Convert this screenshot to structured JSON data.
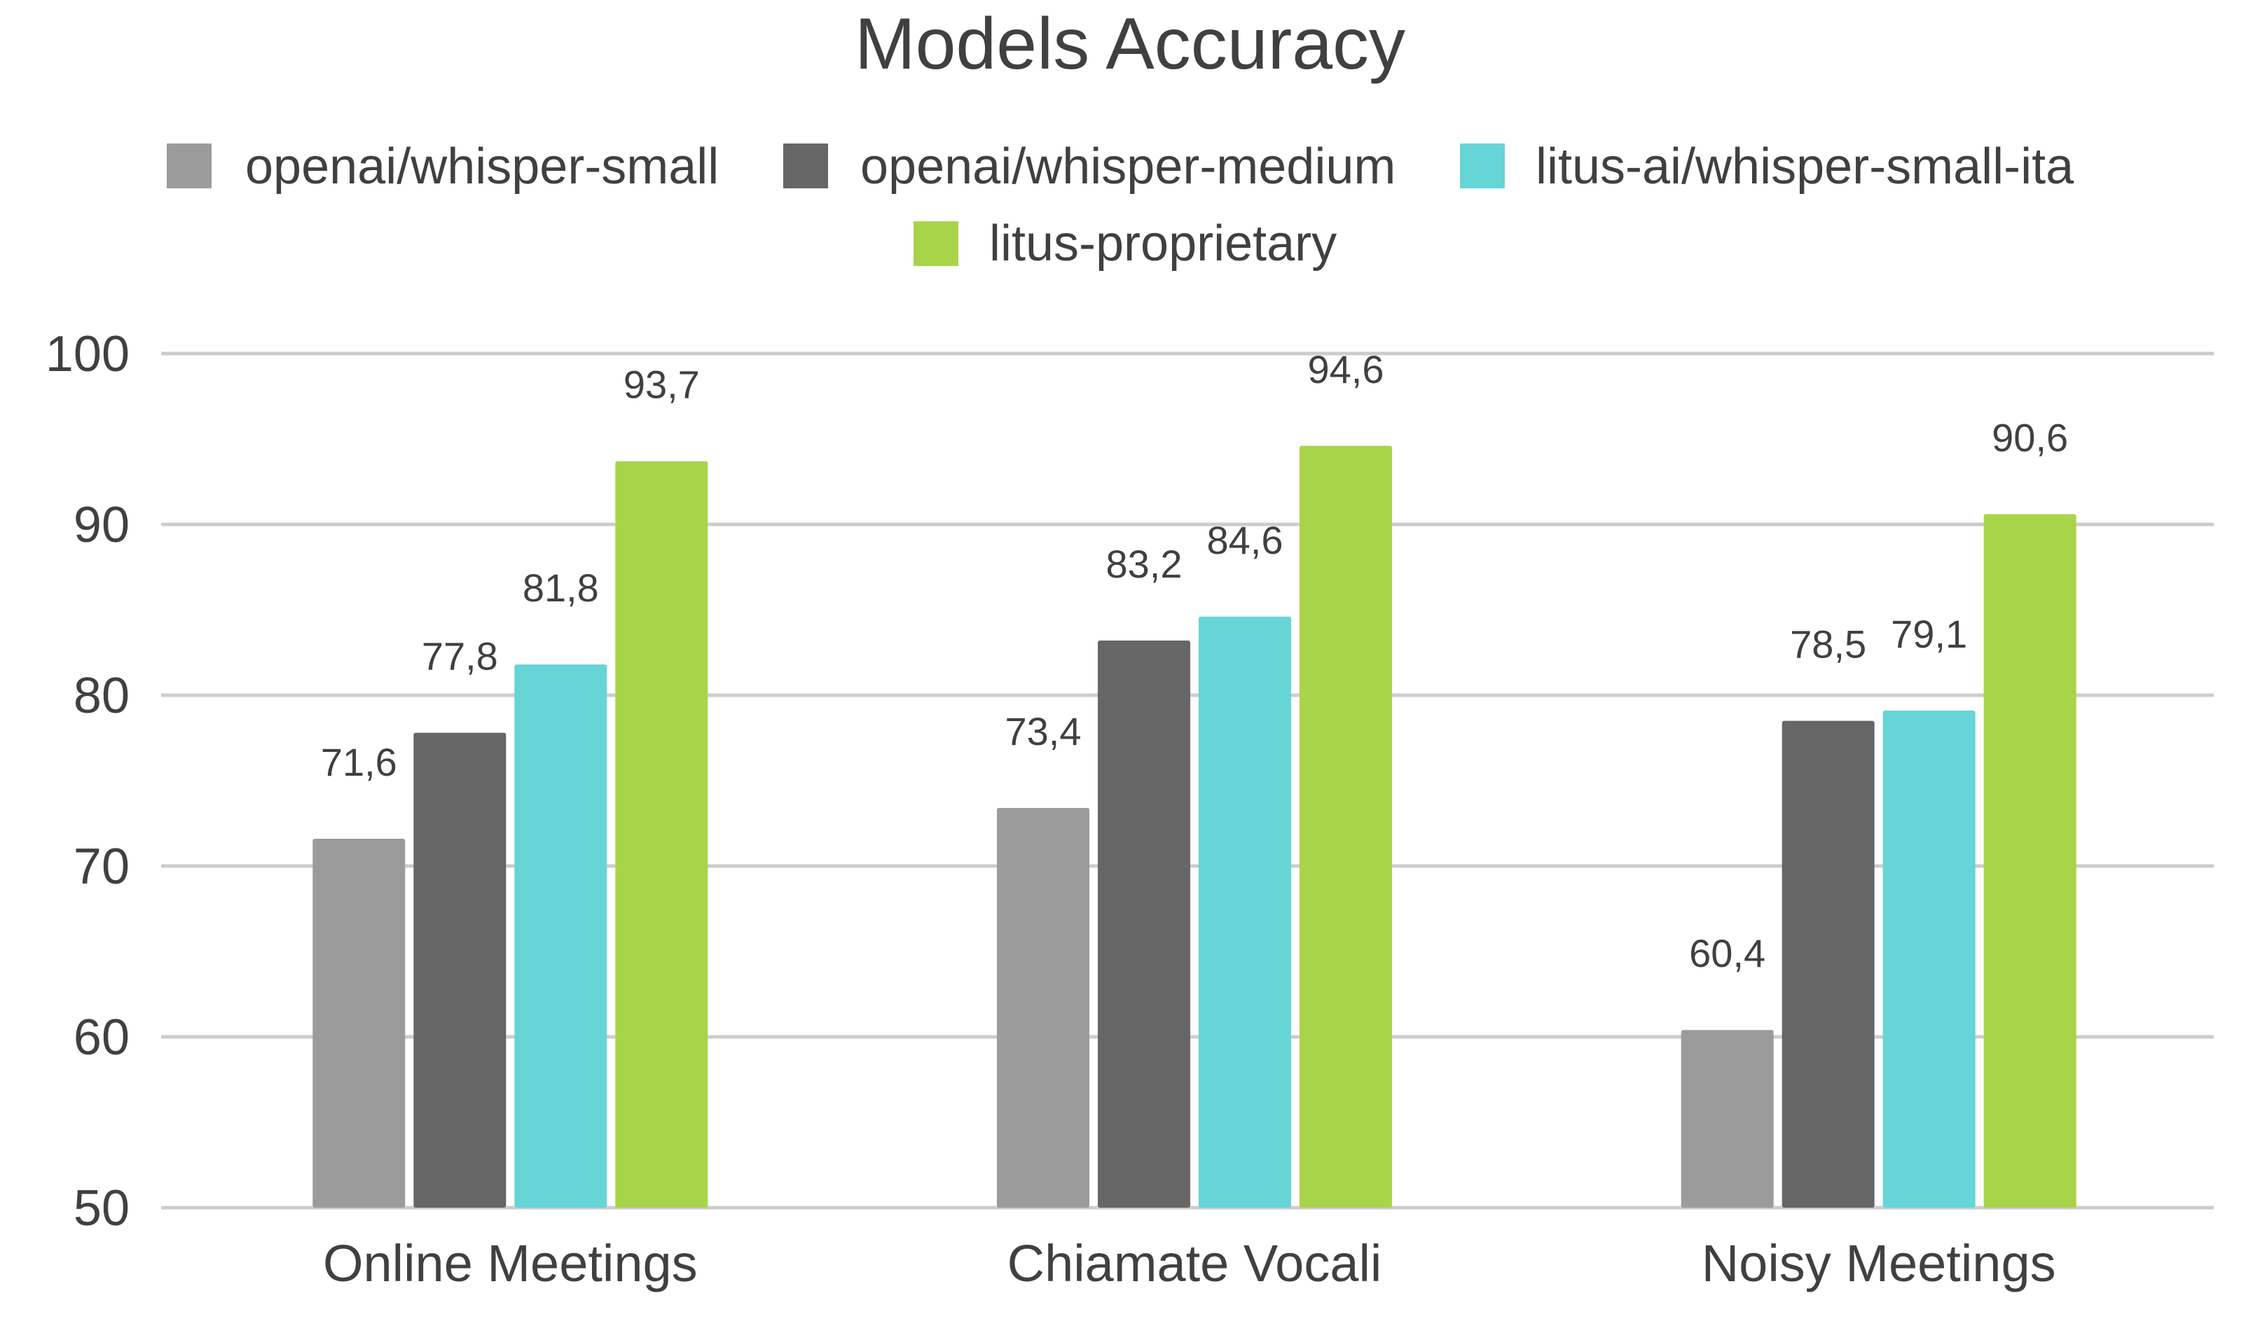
{
  "chart_data": {
    "type": "bar",
    "title": "Models Accuracy",
    "categories": [
      "Online Meetings",
      "Chiamate Vocali",
      "Noisy Meetings"
    ],
    "series": [
      {
        "name": "openai/whisper-small",
        "color": "#9b9b9b",
        "values": [
          71.6,
          73.4,
          60.4
        ],
        "labels": [
          "71,6",
          "73,4",
          "60,4"
        ]
      },
      {
        "name": "openai/whisper-medium",
        "color": "#666666",
        "values": [
          77.8,
          83.2,
          78.5
        ],
        "labels": [
          "77,8",
          "83,2",
          "78,5"
        ]
      },
      {
        "name": "litus-ai/whisper-small-ita",
        "color": "#66d5d6",
        "values": [
          81.8,
          84.6,
          79.1
        ],
        "labels": [
          "81,8",
          "84,6",
          "79,1"
        ]
      },
      {
        "name": "litus-proprietary",
        "color": "#a8d44a",
        "values": [
          93.7,
          94.6,
          90.6
        ],
        "labels": [
          "93,7",
          "94,6",
          "90,6"
        ]
      }
    ],
    "yticks": [
      "50",
      "60",
      "70",
      "80",
      "90",
      "100"
    ],
    "ylim": [
      50,
      100
    ],
    "grid": true,
    "legend_position": "top"
  }
}
